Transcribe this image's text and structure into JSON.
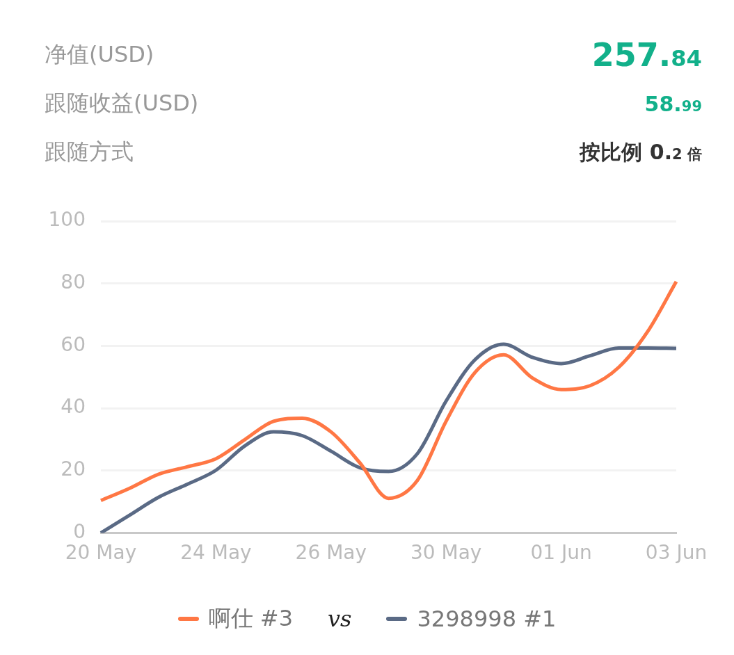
{
  "chart_data": {
    "type": "line",
    "annotations": [
      "净值(USD)",
      "257.84",
      "跟随收益(USD)",
      "58.99",
      "跟随方式",
      "按比例 0.2 倍",
      "vs"
    ],
    "categories": [
      "20 May",
      null,
      null,
      null,
      "24 May",
      null,
      null,
      null,
      "26 May",
      null,
      null,
      null,
      "30 May",
      null,
      null,
      null,
      "01 Jun",
      null,
      null,
      null,
      "03 Jun"
    ],
    "series": [
      {
        "name": "啊仕 #3",
        "color": "#ff7744",
        "values": [
          10.4,
          14.3,
          18.8,
          21.2,
          23.8,
          29.9,
          35.8,
          36.8,
          32.4,
          22.5,
          11.1,
          16.8,
          35.8,
          51.4,
          57.1,
          49.7,
          46.0,
          47.2,
          53.1,
          64.5,
          80.6
        ]
      },
      {
        "name": "3298998 #1",
        "color": "#5a6a85",
        "values": [
          0,
          5.7,
          11.4,
          15.6,
          20.1,
          27.9,
          32.4,
          31.2,
          26.2,
          20.9,
          19.7,
          25.4,
          42.3,
          55.5,
          60.5,
          56.3,
          54.3,
          56.8,
          59.3,
          59.3,
          59.2
        ]
      }
    ],
    "ylim": [
      0,
      100
    ],
    "yticks": [
      0,
      20,
      40,
      60,
      80,
      100
    ],
    "grid": "y",
    "legend": "bottom",
    "marker": "none",
    "line_style": "solid"
  }
}
